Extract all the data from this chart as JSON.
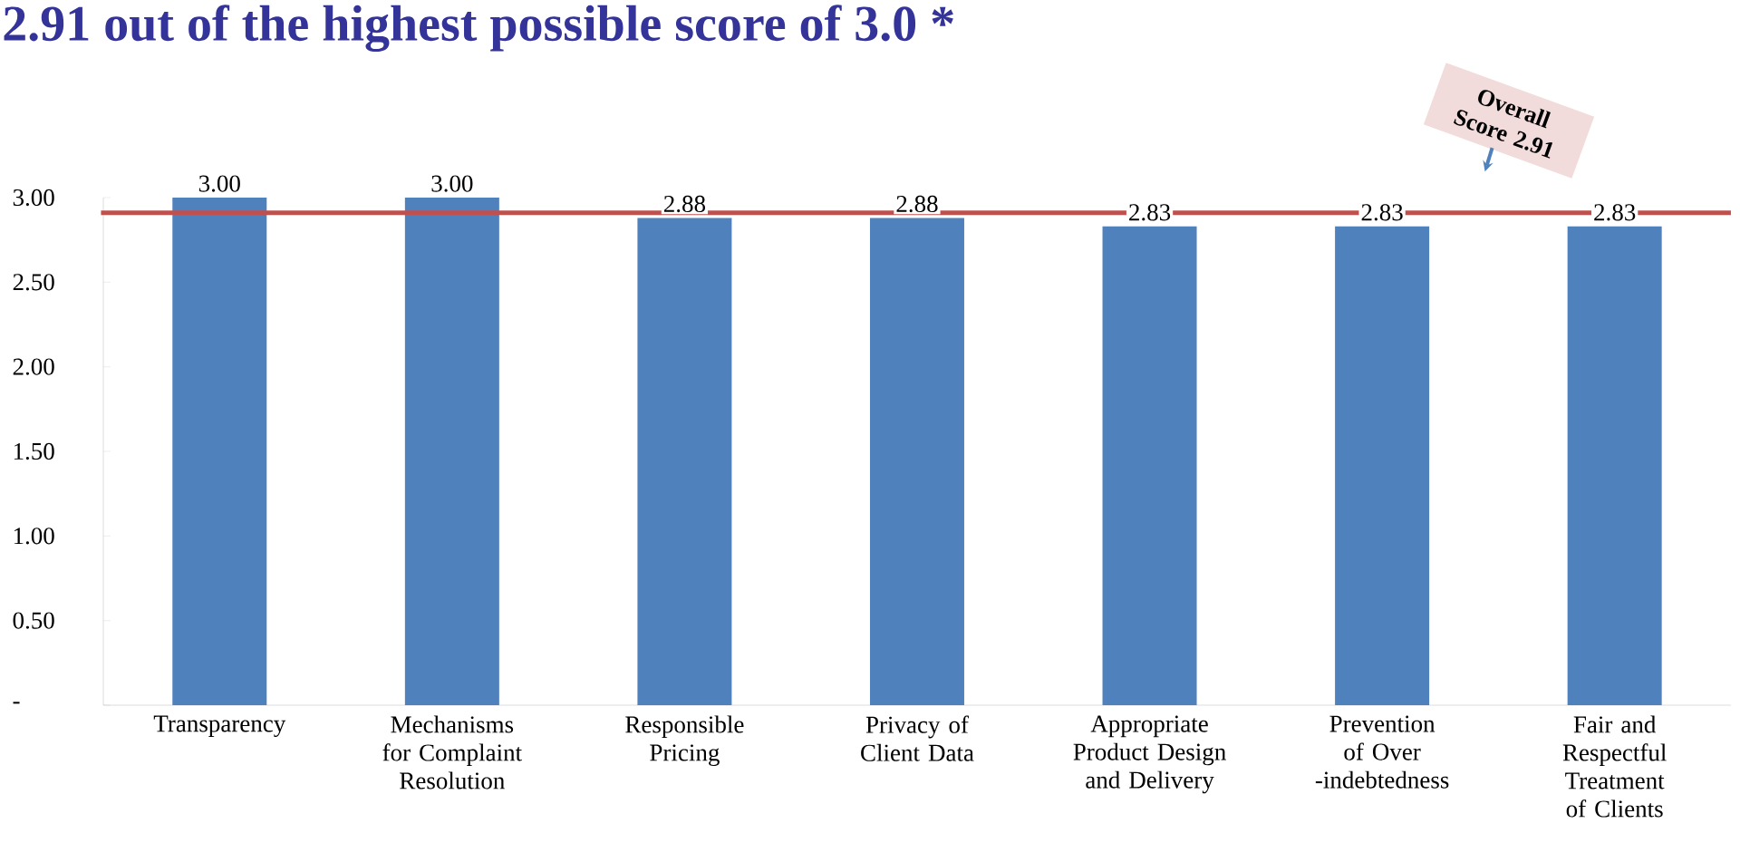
{
  "chart_data": {
    "type": "bar",
    "title": "2.91 out of the highest possible score of 3.0 *",
    "categories": [
      "Transparency",
      "Mechanisms for Complaint Resolution",
      "Responsible Pricing",
      "Privacy of Client Data",
      "Appropriate Product Design and Delivery",
      "Prevention of Over -indebtedness",
      "Fair and Respectful Treatment of Clients"
    ],
    "values": [
      3.0,
      3.0,
      2.88,
      2.88,
      2.83,
      2.83,
      2.83
    ],
    "color": "#4f81bd",
    "value_labels": [
      "3.00",
      "3.00",
      "2.88",
      "2.88",
      "2.83",
      "2.83",
      "2.83"
    ],
    "ylim": [
      0,
      3.0
    ],
    "yticks": [
      {
        "value": 0,
        "label": "-"
      },
      {
        "value": 0.5,
        "label": "0.50"
      },
      {
        "value": 1.0,
        "label": "1.00"
      },
      {
        "value": 1.5,
        "label": "1.50"
      },
      {
        "value": 2.0,
        "label": "2.00"
      },
      {
        "value": 2.5,
        "label": "2.50"
      },
      {
        "value": 3.0,
        "label": "3.00"
      }
    ],
    "grid": false,
    "ref_lines": [
      {
        "axis": "y",
        "value": 2.91,
        "label": "Overall Score 2.91",
        "color": "#c0504d"
      }
    ]
  }
}
